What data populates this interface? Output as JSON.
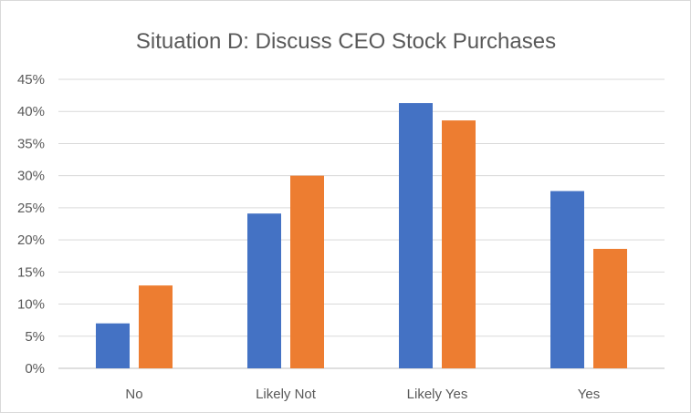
{
  "chart_data": {
    "type": "bar",
    "title": "Situation D: Discuss CEO  Stock Purchases",
    "xlabel": "",
    "ylabel": "",
    "categories": [
      "No",
      "Likely Not",
      "Likely Yes",
      "Yes"
    ],
    "series": [
      {
        "color": "#4472C4",
        "values": [
          7.0,
          24.1,
          41.3,
          27.6
        ]
      },
      {
        "color": "#ED7D31",
        "values": [
          12.9,
          30.0,
          38.6,
          18.6
        ]
      }
    ],
    "ylim": [
      0,
      45
    ],
    "ytick_step": 5,
    "ytick_suffix": "%",
    "grid": true,
    "legend": "none"
  }
}
